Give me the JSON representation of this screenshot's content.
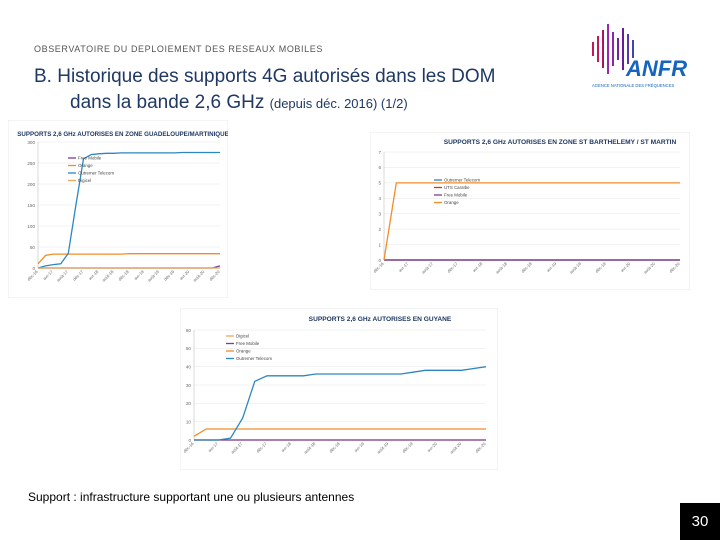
{
  "header": {
    "label": "OBSERVATOIRE DU DEPLOIEMENT DES RESEAUX MOBILES"
  },
  "title": {
    "line1": "B. Historique des supports 4G autorisés dans les DOM",
    "line2": "dans la bande 2,6 GHz",
    "subtitle": "(depuis déc. 2016) (1/2)"
  },
  "logo": {
    "text": "ANFR",
    "tagline": "AGENCE NATIONALE DES FRÉQUENCES",
    "colors": [
      "#c2185b",
      "#7b1fa2",
      "#1565c0"
    ]
  },
  "footnote": "Support : infrastructure supportant une ou plusieurs antennes",
  "page_number": "30",
  "chart_data": [
    {
      "type": "line",
      "title": "SUPPORTS 2,6 GHz AUTORISES EN ZONE GUADELOUPE/MARTINIQUE",
      "x": [
        "déc-16",
        "févr-17",
        "avr-17",
        "juin-17",
        "août-17",
        "oct-17",
        "déc-17",
        "févr-18",
        "avr-18",
        "juin-18",
        "août-18",
        "oct-18",
        "déc-18",
        "févr-19",
        "avr-19",
        "juin-19",
        "août-19",
        "oct-19",
        "déc-19",
        "févr-20",
        "avr-20",
        "juin-20",
        "août-20",
        "oct-20",
        "déc-20"
      ],
      "ylim": [
        0,
        300
      ],
      "yticks": [
        0,
        50,
        100,
        150,
        200,
        250,
        300
      ],
      "series": [
        {
          "name": "Free Mobile",
          "color": "#7b3f98",
          "values": [
            0,
            0,
            0,
            0,
            0,
            0,
            0,
            0,
            0,
            0,
            0,
            0,
            0,
            0,
            0,
            0,
            0,
            0,
            0,
            0,
            0,
            0,
            0,
            0,
            5
          ]
        },
        {
          "name": "Orange",
          "color": "#f28c28",
          "values": [
            10,
            30,
            33,
            33,
            33,
            33,
            33,
            33,
            33,
            33,
            33,
            33,
            34,
            34,
            34,
            34,
            34,
            34,
            34,
            34,
            34,
            34,
            34,
            34,
            34
          ]
        },
        {
          "name": "Outremer Telecom",
          "color": "#2e86c1",
          "values": [
            0,
            5,
            8,
            10,
            35,
            150,
            260,
            270,
            272,
            273,
            273,
            274,
            274,
            274,
            274,
            274,
            274,
            274,
            274,
            275,
            275,
            275,
            275,
            275,
            275
          ]
        },
        {
          "name": "Digicel",
          "color": "#e9a95a",
          "values": [
            0,
            0,
            0,
            0,
            0,
            0,
            0,
            0,
            0,
            0,
            0,
            0,
            0,
            0,
            0,
            0,
            0,
            0,
            0,
            0,
            0,
            0,
            0,
            0,
            0
          ]
        }
      ]
    },
    {
      "type": "line",
      "title": "SUPPORTS 2,6 GHz AUTORISES EN ZONE ST BARTHELEMY / ST MARTIN",
      "x": [
        "déc-16",
        "févr-17",
        "avr-17",
        "juin-17",
        "août-17",
        "oct-17",
        "déc-17",
        "févr-18",
        "avr-18",
        "juin-18",
        "août-18",
        "oct-18",
        "déc-18",
        "févr-19",
        "avr-19",
        "juin-19",
        "août-19",
        "oct-19",
        "déc-19",
        "févr-20",
        "avr-20",
        "juin-20",
        "août-20",
        "oct-20",
        "déc-20"
      ],
      "ylim": [
        0,
        7
      ],
      "yticks": [
        0,
        1,
        2,
        3,
        4,
        5,
        6,
        7
      ],
      "series": [
        {
          "name": "Outremer Telecom",
          "color": "#2e86c1",
          "values": [
            0,
            0,
            0,
            0,
            0,
            0,
            0,
            0,
            0,
            0,
            0,
            0,
            0,
            0,
            0,
            0,
            0,
            0,
            0,
            0,
            0,
            0,
            0,
            0,
            0
          ]
        },
        {
          "name": "UTS Caraïbe",
          "color": "#c0392b",
          "values": [
            0,
            0,
            0,
            0,
            0,
            0,
            0,
            0,
            0,
            0,
            0,
            0,
            0,
            0,
            0,
            0,
            0,
            0,
            0,
            0,
            0,
            0,
            0,
            0,
            0
          ]
        },
        {
          "name": "Free Mobile",
          "color": "#7b3f98",
          "values": [
            0,
            0,
            0,
            0,
            0,
            0,
            0,
            0,
            0,
            0,
            0,
            0,
            0,
            0,
            0,
            0,
            0,
            0,
            0,
            0,
            0,
            0,
            0,
            0,
            0
          ]
        },
        {
          "name": "Orange",
          "color": "#f28c28",
          "values": [
            0,
            5,
            5,
            5,
            5,
            5,
            5,
            5,
            5,
            5,
            5,
            5,
            5,
            5,
            5,
            5,
            5,
            5,
            5,
            5,
            5,
            5,
            5,
            5,
            5
          ]
        }
      ]
    },
    {
      "type": "line",
      "title": "SUPPORTS 2,6 GHz AUTORISES EN GUYANE",
      "x": [
        "déc-16",
        "févr-17",
        "avr-17",
        "juin-17",
        "août-17",
        "oct-17",
        "déc-17",
        "févr-18",
        "avr-18",
        "juin-18",
        "août-18",
        "oct-18",
        "déc-18",
        "févr-19",
        "avr-19",
        "juin-19",
        "août-19",
        "oct-19",
        "déc-19",
        "févr-20",
        "avr-20",
        "juin-20",
        "août-20",
        "oct-20",
        "déc-20"
      ],
      "ylim": [
        0,
        60
      ],
      "yticks": [
        0,
        10,
        20,
        30,
        40,
        50,
        60
      ],
      "series": [
        {
          "name": "Digicel",
          "color": "#e9a95a",
          "values": [
            0,
            0,
            0,
            0,
            0,
            0,
            0,
            0,
            0,
            0,
            0,
            0,
            0,
            0,
            0,
            0,
            0,
            0,
            0,
            0,
            0,
            0,
            0,
            0,
            0
          ]
        },
        {
          "name": "Free Mobile",
          "color": "#7b3f98",
          "values": [
            0,
            0,
            0,
            0,
            0,
            0,
            0,
            0,
            0,
            0,
            0,
            0,
            0,
            0,
            0,
            0,
            0,
            0,
            0,
            0,
            0,
            0,
            0,
            0,
            0
          ]
        },
        {
          "name": "Orange",
          "color": "#f28c28",
          "values": [
            2,
            6,
            6,
            6,
            6,
            6,
            6,
            6,
            6,
            6,
            6,
            6,
            6,
            6,
            6,
            6,
            6,
            6,
            6,
            6,
            6,
            6,
            6,
            6,
            6
          ]
        },
        {
          "name": "Outremer Telecom",
          "color": "#2e86c1",
          "values": [
            0,
            0,
            0,
            1,
            12,
            32,
            35,
            35,
            35,
            35,
            36,
            36,
            36,
            36,
            36,
            36,
            36,
            36,
            37,
            38,
            38,
            38,
            38,
            39,
            40
          ]
        }
      ]
    }
  ]
}
